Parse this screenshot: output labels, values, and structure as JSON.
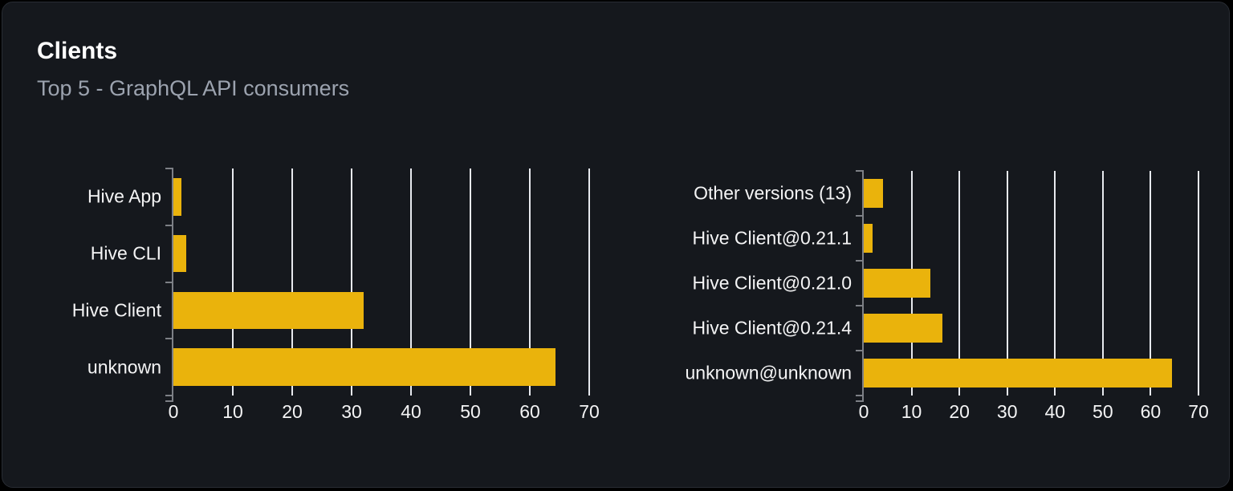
{
  "card": {
    "title": "Clients",
    "subtitle": "Top 5 - GraphQL API consumers"
  },
  "colors": {
    "page_bg": "#000000",
    "card_bg": "#15181d",
    "card_border": "#282c33",
    "title": "#ffffff",
    "subtitle": "#9ca3af",
    "label": "#f4f4f5",
    "bar": "#eab30c",
    "grid": "#e7e9ee",
    "axis": "#7d8086"
  },
  "chart_data": [
    {
      "type": "bar",
      "orientation": "horizontal",
      "name": "clients",
      "categories": [
        "Hive App",
        "Hive CLI",
        "Hive Client",
        "unknown"
      ],
      "values": [
        1.4,
        2.2,
        32,
        64.3
      ],
      "xlim": [
        0,
        70
      ],
      "xticks": [
        0,
        10,
        20,
        30,
        40,
        50,
        60,
        70
      ],
      "grid": true,
      "legend": "none",
      "bar_color": "#eab30c"
    },
    {
      "type": "bar",
      "orientation": "horizontal",
      "name": "client-versions",
      "categories": [
        "Other versions (13)",
        "Hive Client@0.21.1",
        "Hive Client@0.21.0",
        "Hive Client@0.21.4",
        "unknown@unknown"
      ],
      "values": [
        4,
        1.8,
        13.9,
        16.5,
        64.5
      ],
      "xlim": [
        0,
        70
      ],
      "xticks": [
        0,
        10,
        20,
        30,
        40,
        50,
        60,
        70
      ],
      "grid": true,
      "legend": "none",
      "bar_color": "#eab30c"
    }
  ]
}
